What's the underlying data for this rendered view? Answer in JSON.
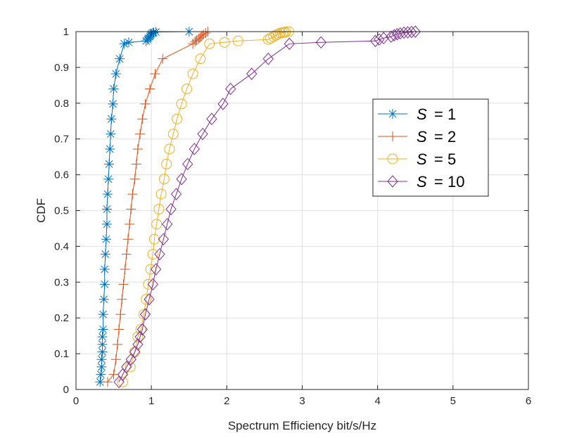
{
  "chart_data": {
    "type": "line",
    "title": "",
    "xlabel": "Spectrum Efficiency bit/s/Hz",
    "ylabel": "CDF",
    "xlim": [
      0,
      6
    ],
    "ylim": [
      0,
      1
    ],
    "xticks": [
      0,
      1,
      2,
      3,
      4,
      5,
      6
    ],
    "xtick_labels": [
      "0",
      "1",
      "2",
      "3",
      "4",
      "5",
      "6"
    ],
    "yticks": [
      0,
      0.1,
      0.2,
      0.3,
      0.4,
      0.5,
      0.6,
      0.7,
      0.8,
      0.9,
      1
    ],
    "ytick_labels": [
      "0",
      "0.1",
      "0.2",
      "0.3",
      "0.4",
      "0.5",
      "0.6",
      "0.7",
      "0.8",
      "0.9",
      "1"
    ],
    "grid": true,
    "legend_position": "right",
    "series": [
      {
        "name": "S = 1",
        "legend_symbol": "S",
        "legend_value": "= 1",
        "marker": "asterisk",
        "color": "#0072BD",
        "x": [
          0.32,
          0.33,
          0.34,
          0.34,
          0.35,
          0.35,
          0.35,
          0.36,
          0.36,
          0.37,
          0.38,
          0.38,
          0.39,
          0.4,
          0.41,
          0.41,
          0.42,
          0.43,
          0.44,
          0.45,
          0.46,
          0.47,
          0.49,
          0.5,
          0.53,
          0.58,
          0.64,
          0.7,
          0.93,
          0.95,
          0.96,
          0.98,
          0.99,
          1.0,
          1.02,
          1.03,
          1.06,
          1.5
        ],
        "y": [
          0.021,
          0.042,
          0.063,
          0.084,
          0.105,
          0.126,
          0.147,
          0.168,
          0.21,
          0.252,
          0.294,
          0.336,
          0.378,
          0.42,
          0.462,
          0.504,
          0.546,
          0.588,
          0.63,
          0.672,
          0.714,
          0.756,
          0.798,
          0.84,
          0.882,
          0.924,
          0.966,
          0.97,
          0.974,
          0.978,
          0.982,
          0.986,
          0.99,
          0.994,
          0.996,
          0.998,
          0.999,
          1.0
        ]
      },
      {
        "name": "S = 2",
        "legend_symbol": "S",
        "legend_value": "= 2",
        "marker": "plus",
        "color": "#D95319",
        "x": [
          0.42,
          0.5,
          0.53,
          0.55,
          0.57,
          0.59,
          0.61,
          0.63,
          0.65,
          0.67,
          0.69,
          0.71,
          0.73,
          0.75,
          0.78,
          0.8,
          0.82,
          0.85,
          0.88,
          0.92,
          0.98,
          1.05,
          1.15,
          1.55,
          1.58,
          1.6,
          1.63,
          1.65,
          1.67,
          1.69,
          1.72,
          1.75
        ],
        "y": [
          0.021,
          0.042,
          0.084,
          0.126,
          0.168,
          0.21,
          0.252,
          0.294,
          0.336,
          0.378,
          0.42,
          0.462,
          0.504,
          0.546,
          0.588,
          0.63,
          0.672,
          0.714,
          0.756,
          0.798,
          0.84,
          0.882,
          0.924,
          0.966,
          0.972,
          0.976,
          0.98,
          0.984,
          0.988,
          0.992,
          0.996,
          1.0
        ]
      },
      {
        "name": "S = 5",
        "legend_symbol": "S",
        "legend_value": "= 5",
        "marker": "circle",
        "color": "#EDB120",
        "x": [
          0.62,
          0.72,
          0.78,
          0.82,
          0.86,
          0.9,
          0.93,
          0.96,
          0.99,
          1.02,
          1.04,
          1.07,
          1.1,
          1.13,
          1.17,
          1.2,
          1.24,
          1.29,
          1.34,
          1.4,
          1.47,
          1.55,
          1.65,
          1.77,
          1.97,
          2.15,
          2.55,
          2.58,
          2.62,
          2.65,
          2.68,
          2.71,
          2.74,
          2.76,
          2.78,
          2.82
        ],
        "y": [
          0.021,
          0.063,
          0.105,
          0.147,
          0.168,
          0.21,
          0.252,
          0.294,
          0.336,
          0.378,
          0.42,
          0.462,
          0.504,
          0.546,
          0.588,
          0.63,
          0.672,
          0.714,
          0.756,
          0.798,
          0.84,
          0.882,
          0.924,
          0.966,
          0.97,
          0.974,
          0.978,
          0.982,
          0.986,
          0.99,
          0.993,
          0.996,
          0.997,
          0.998,
          0.999,
          1.0
        ]
      },
      {
        "name": "S = 10",
        "legend_symbol": "S",
        "legend_value": "= 10",
        "marker": "diamond",
        "color": "#7E2F8E",
        "x": [
          0.57,
          0.62,
          0.67,
          0.73,
          0.78,
          0.82,
          0.85,
          0.88,
          0.92,
          0.97,
          1.02,
          1.06,
          1.11,
          1.16,
          1.21,
          1.26,
          1.33,
          1.4,
          1.48,
          1.57,
          1.68,
          1.8,
          1.95,
          2.05,
          2.33,
          2.55,
          2.83,
          3.25,
          3.97,
          4.02,
          4.08,
          4.18,
          4.22,
          4.26,
          4.3,
          4.35,
          4.4,
          4.45,
          4.5
        ],
        "y": [
          0.021,
          0.042,
          0.063,
          0.084,
          0.105,
          0.126,
          0.147,
          0.168,
          0.21,
          0.252,
          0.294,
          0.336,
          0.378,
          0.42,
          0.462,
          0.504,
          0.546,
          0.588,
          0.63,
          0.672,
          0.714,
          0.756,
          0.798,
          0.84,
          0.882,
          0.924,
          0.966,
          0.97,
          0.974,
          0.978,
          0.982,
          0.986,
          0.99,
          0.993,
          0.995,
          0.997,
          0.998,
          0.999,
          1.0
        ]
      }
    ]
  }
}
